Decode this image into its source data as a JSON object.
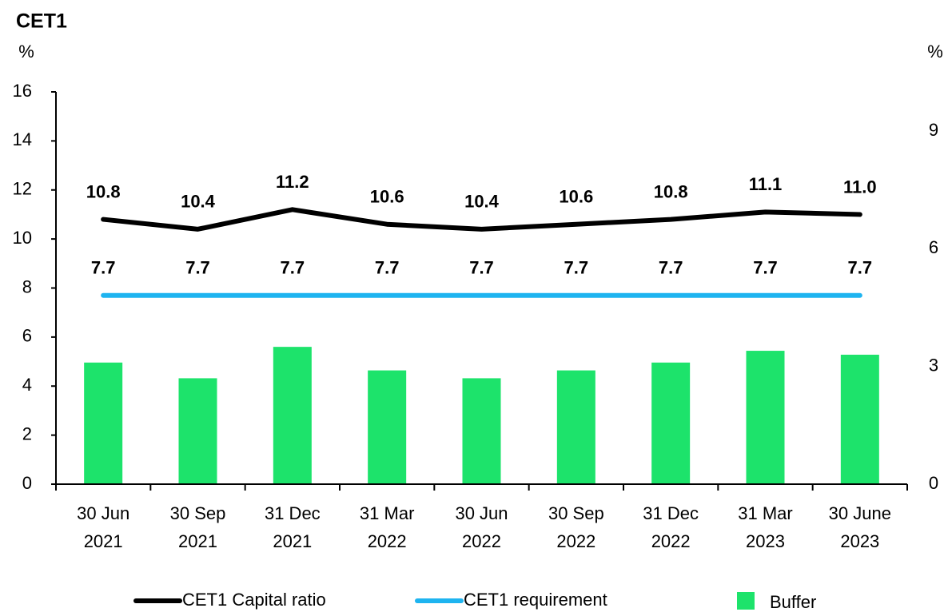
{
  "chart_data": {
    "type": "bar_line",
    "title": "CET1",
    "y_unit": "%",
    "y2_unit": "%",
    "categories": [
      [
        "30 Jun",
        "2021"
      ],
      [
        "30 Sep",
        "2021"
      ],
      [
        "31 Dec",
        "2021"
      ],
      [
        "31 Mar",
        "2022"
      ],
      [
        "30 Jun",
        "2022"
      ],
      [
        "30 Sep",
        "2022"
      ],
      [
        "31 Dec",
        "2022"
      ],
      [
        "31 Mar",
        "2023"
      ],
      [
        "30 June",
        "2023"
      ]
    ],
    "ylim": [
      0,
      16
    ],
    "yticks": [
      0,
      2,
      4,
      6,
      8,
      10,
      12,
      14,
      16
    ],
    "y2lim": [
      0,
      10
    ],
    "y2ticks": [
      0,
      3,
      6,
      9
    ],
    "series": [
      {
        "name": "CET1 Capital ratio",
        "type": "line",
        "color": "#000000",
        "values": [
          10.8,
          10.4,
          11.2,
          10.6,
          10.4,
          10.6,
          10.8,
          11.1,
          11.0
        ],
        "value_labels": [
          "10.8",
          "10.4",
          "11.2",
          "10.6",
          "10.4",
          "10.6",
          "10.8",
          "11.1",
          "11.0"
        ]
      },
      {
        "name": "CET1 requirement",
        "type": "line",
        "color": "#1eb4f0",
        "values": [
          7.7,
          7.7,
          7.7,
          7.7,
          7.7,
          7.7,
          7.7,
          7.7,
          7.7
        ]
      },
      {
        "name": "Buffer",
        "type": "bar",
        "axis": "y2",
        "color": "#1de36b",
        "values": [
          3.1,
          2.7,
          3.5,
          2.9,
          2.7,
          2.9,
          3.1,
          3.4,
          3.3
        ]
      }
    ]
  }
}
